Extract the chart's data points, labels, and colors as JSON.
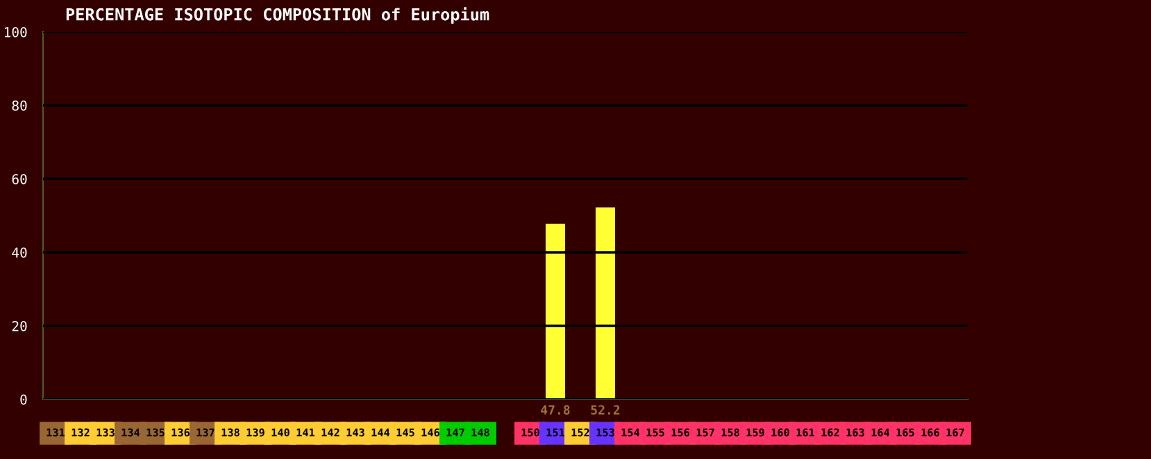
{
  "chart_data": {
    "type": "bar",
    "title": "PERCENTAGE ISOTOPIC COMPOSITION of Europium",
    "categories": [
      "131",
      "132",
      "133",
      "134",
      "135",
      "136",
      "137",
      "138",
      "139",
      "140",
      "141",
      "142",
      "143",
      "144",
      "145",
      "146",
      "147",
      "148",
      null,
      "150",
      "151",
      "152",
      "153",
      "154",
      "155",
      "156",
      "157",
      "158",
      "159",
      "160",
      "161",
      "162",
      "163",
      "164",
      "165",
      "166",
      "167"
    ],
    "values": [
      null,
      null,
      null,
      null,
      null,
      null,
      null,
      null,
      null,
      null,
      null,
      null,
      null,
      null,
      null,
      null,
      null,
      null,
      null,
      null,
      47.8,
      null,
      52.2,
      null,
      null,
      null,
      null,
      null,
      null,
      null,
      null,
      null,
      null,
      null,
      null,
      null,
      null
    ],
    "value_labels": [
      null,
      null,
      null,
      null,
      null,
      null,
      null,
      null,
      null,
      null,
      null,
      null,
      null,
      null,
      null,
      null,
      null,
      null,
      null,
      null,
      "47.8",
      null,
      "52.2",
      null,
      null,
      null,
      null,
      null,
      null,
      null,
      null,
      null,
      null,
      null,
      null,
      null,
      null
    ],
    "color": "#ffff33",
    "ylim": [
      0,
      100
    ],
    "yticks": [
      0,
      20,
      40,
      60,
      80,
      100
    ],
    "grid": "y"
  }
}
